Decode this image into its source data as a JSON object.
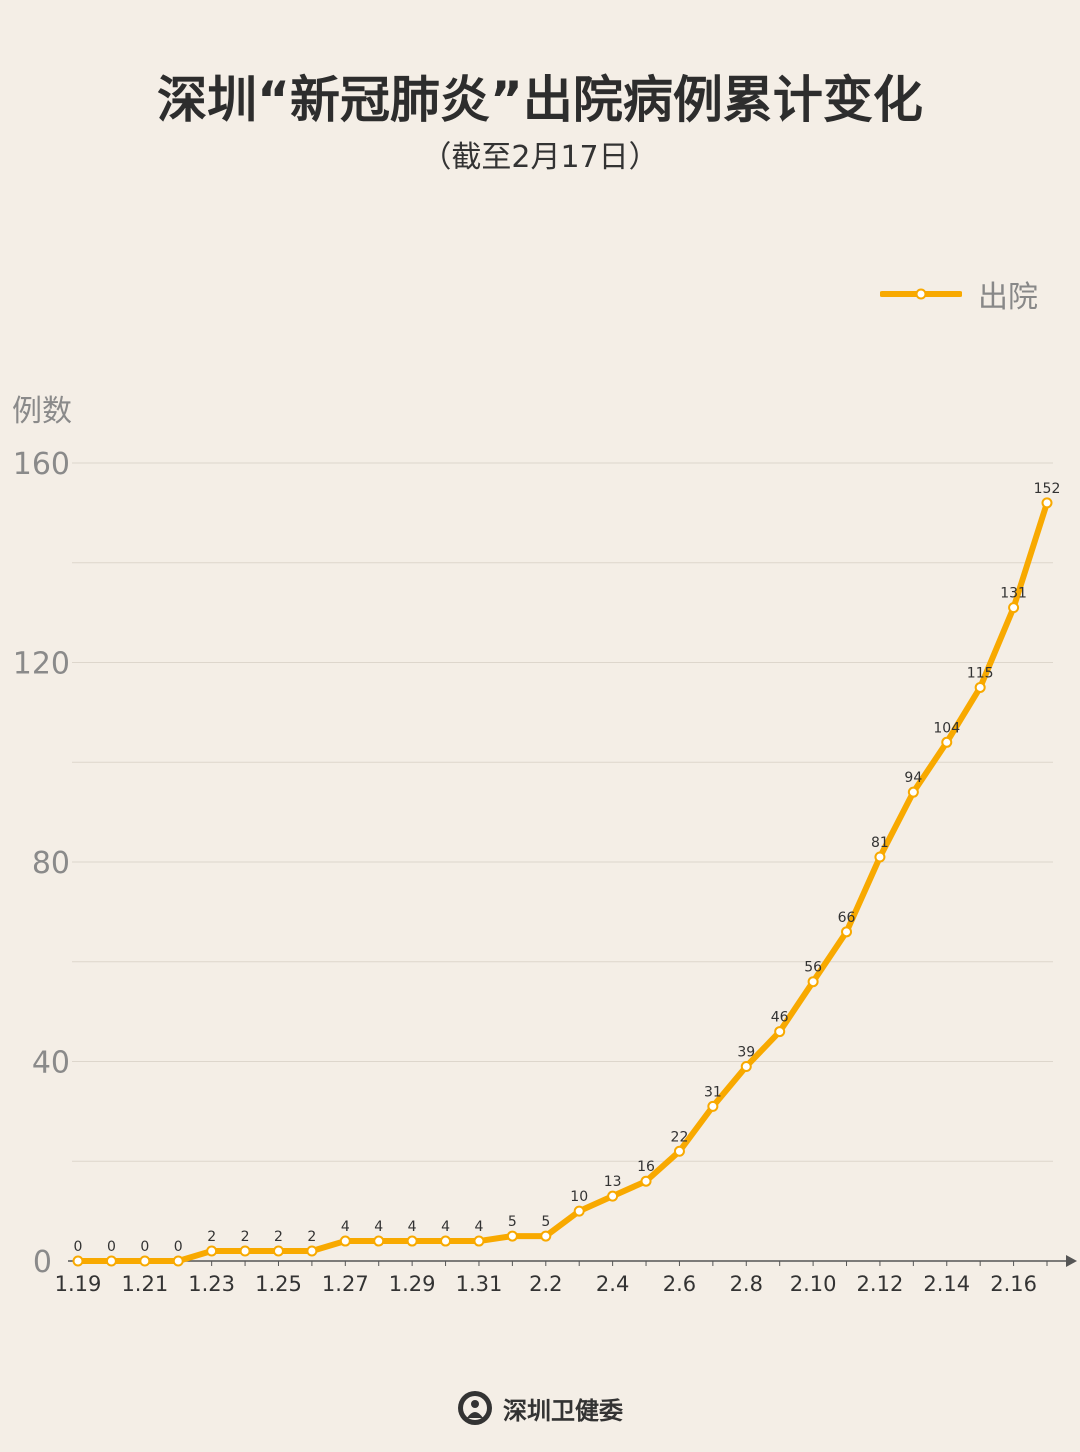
{
  "chart_data": {
    "type": "line",
    "title": "深圳“新冠肺炎”出院病例累计变化",
    "subtitle": "（截至2月17日）",
    "ylabel": "例数",
    "xlabel": "",
    "ylim": [
      0,
      160
    ],
    "yticks": [
      0,
      40,
      80,
      120,
      160
    ],
    "grid": true,
    "legend_position": "top-right",
    "x": [
      "1.19",
      "1.20",
      "1.21",
      "1.22",
      "1.23",
      "1.24",
      "1.25",
      "1.26",
      "1.27",
      "1.28",
      "1.29",
      "1.30",
      "1.31",
      "2.1",
      "2.2",
      "2.3",
      "2.4",
      "2.5",
      "2.6",
      "2.7",
      "2.8",
      "2.9",
      "2.10",
      "2.11",
      "2.12",
      "2.13",
      "2.14",
      "2.15",
      "2.16",
      "2.17"
    ],
    "xtick_labels": [
      "1.19",
      "1.21",
      "1.23",
      "1.25",
      "1.27",
      "1.29",
      "1.31",
      "2.2",
      "2.4",
      "2.6",
      "2.8",
      "2.10",
      "2.12",
      "2.14",
      "2.16"
    ],
    "series": [
      {
        "name": "出院",
        "color": "#f8a900",
        "values": [
          0,
          0,
          0,
          0,
          2,
          2,
          2,
          2,
          4,
          4,
          4,
          4,
          4,
          5,
          5,
          10,
          13,
          16,
          22,
          31,
          39,
          46,
          56,
          66,
          81,
          94,
          104,
          115,
          131,
          152
        ]
      }
    ]
  },
  "footer": {
    "org": "深圳卫健委"
  },
  "colors": {
    "background": "#f4eee6",
    "line": "#f8a900",
    "grid": "#ddd6cc"
  }
}
